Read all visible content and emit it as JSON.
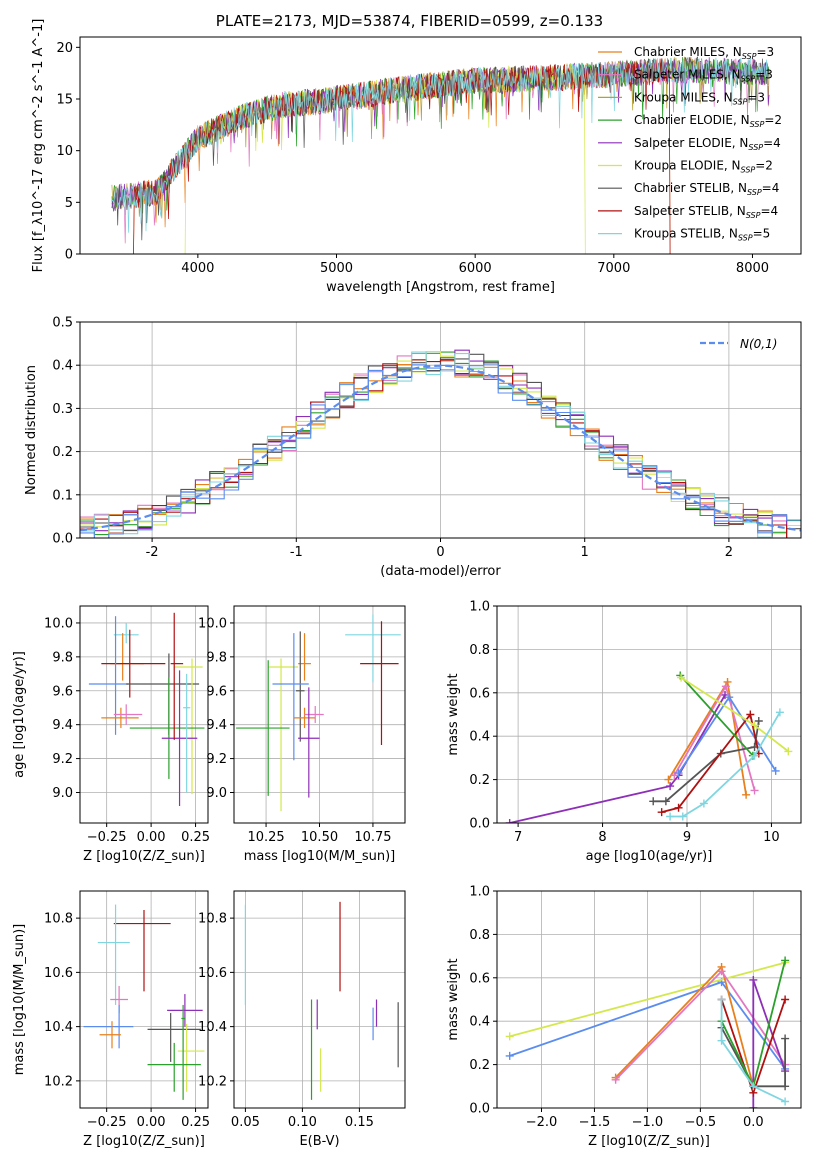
{
  "title": "PLATE=2173, MJD=53874, FIBERID=0599, z=0.133",
  "colors": [
    "#e377c2",
    "#e8801c",
    "#b5a130",
    "#2ca02c",
    "#8e2fb8",
    "#d4e84d",
    "#555555",
    "#b01010",
    "#7fd6e0",
    "#5b8def"
  ],
  "chart_data": [
    {
      "type": "line",
      "panel": "spectrum",
      "xlabel": "wavelength [Angstrom, rest frame]",
      "ylabel": "Flux [f_λ10^-17 erg cm^-2 s^-1 A^-1]",
      "xlim": [
        3150,
        8350
      ],
      "ylim": [
        0,
        21
      ],
      "xticks": [
        4000,
        5000,
        6000,
        7000,
        8000
      ],
      "yticks": [
        0,
        5,
        10,
        15,
        20
      ],
      "continuum_x": [
        3400,
        3700,
        4000,
        4300,
        4600,
        5000,
        5500,
        6000,
        6500,
        7000,
        7500,
        8100
      ],
      "continuum_y": [
        5.4,
        6.0,
        11.2,
        13.2,
        14.4,
        15.0,
        16.0,
        16.8,
        17.0,
        17.4,
        17.8,
        17.6
      ],
      "cutoffs": [
        {
          "series": "Chabrier MILES, N_SSP=3",
          "xmin": 3540,
          "xmax": 7400
        },
        {
          "series": "Kroupa ELODIE, N_SSP=2",
          "xmin": 3910,
          "xmax": 6790
        },
        {
          "series": "Salpeter STELIB, N_SSP=4",
          "xmin": 3540,
          "xmax": 7400
        }
      ],
      "legend": [
        {
          "label": "Chabrier MILES, N",
          "sub": "SSP",
          "tail": "=3"
        },
        {
          "label": "Salpeter MILES, N",
          "sub": "SSP",
          "tail": "=3"
        },
        {
          "label": "Kroupa MILES, N",
          "sub": "SSP",
          "tail": "=3"
        },
        {
          "label": "Chabrier ELODIE, N",
          "sub": "SSP",
          "tail": "=2"
        },
        {
          "label": "Salpeter ELODIE, N",
          "sub": "SSP",
          "tail": "=4"
        },
        {
          "label": "Kroupa ELODIE, N",
          "sub": "SSP",
          "tail": "=2"
        },
        {
          "label": "Chabrier STELIB, N",
          "sub": "SSP",
          "tail": "=4"
        },
        {
          "label": "Salpeter STELIB, N",
          "sub": "SSP",
          "tail": "=4"
        },
        {
          "label": "Kroupa STELIB, N",
          "sub": "SSP",
          "tail": "=5"
        }
      ],
      "legend_colors": [
        "#e8801c",
        "#e377c2",
        "#b5a130",
        "#2ca02c",
        "#8e2fb8",
        "#d4e84d",
        "#555555",
        "#b01010",
        "#7fd6e0"
      ],
      "legend_placement": "upper right"
    },
    {
      "type": "line",
      "panel": "residual-histogram",
      "xlabel": "(data-model)/error",
      "ylabel": "Normed distribution",
      "xlim": [
        -2.5,
        2.5
      ],
      "ylim": [
        0,
        0.5
      ],
      "xticks": [
        -2,
        -1,
        0,
        1,
        2
      ],
      "yticks": [
        0.0,
        0.1,
        0.2,
        0.3,
        0.4,
        0.5
      ],
      "grid": true,
      "bin_width": 0.1,
      "gaussian": {
        "label": "N(0,1)",
        "color": "#5b8def"
      },
      "legend_placement": "upper right"
    },
    {
      "type": "scatter",
      "panel": "age-vs-Z",
      "xlabel": "Z [log10(Z/Z_sun)]",
      "ylabel": "age [log10(age/yr)]",
      "xlim": [
        -0.4,
        0.32
      ],
      "ylim": [
        8.82,
        10.1
      ],
      "xticks": [
        -0.25,
        0.0,
        0.25
      ],
      "xticklabels": [
        "−0.25",
        "0.00",
        "0.25"
      ],
      "yticks": [
        9.0,
        9.2,
        9.4,
        9.6,
        9.8,
        10.0
      ],
      "grid": true,
      "points": [
        {
          "x": -0.14,
          "y": 9.93,
          "xerr": [
            0.07,
            0.07
          ],
          "yerr": [
            0.05,
            0.07
          ],
          "color": "#7fd6e0"
        },
        {
          "x": -0.16,
          "y": 9.76,
          "xerr": [
            0.07,
            0.12
          ],
          "yerr": [
            0.1,
            0.18
          ],
          "color": "#e8801c"
        },
        {
          "x": -0.12,
          "y": 9.76,
          "xerr": [
            0.16,
            0.2
          ],
          "yerr": [
            0.2,
            0.2
          ],
          "color": "#b01010"
        },
        {
          "x": -0.2,
          "y": 9.64,
          "xerr": [
            0.15,
            0.07
          ],
          "yerr": [
            0.3,
            0.4
          ],
          "color": "#5b8def"
        },
        {
          "x": 0.1,
          "y": 9.64,
          "xerr": [
            0.24,
            0.17
          ],
          "yerr": [
            0.3,
            0.18
          ],
          "color": "#555555"
        },
        {
          "x": 0.23,
          "y": 9.74,
          "xerr": [
            0.1,
            0.06
          ],
          "yerr": [
            0.75,
            0.05
          ],
          "color": "#d4e84d"
        },
        {
          "x": -0.17,
          "y": 9.44,
          "xerr": [
            0.11,
            0.1
          ],
          "yerr": [
            0.06,
            0.06
          ],
          "color": "#e8801c"
        },
        {
          "x": -0.14,
          "y": 9.46,
          "xerr": [
            0.07,
            0.09
          ],
          "yerr": [
            0.06,
            0.06
          ],
          "color": "#e377c2"
        },
        {
          "x": 0.1,
          "y": 9.38,
          "xerr": [
            0.22,
            0.2
          ],
          "yerr": [
            0.3,
            0.3
          ],
          "color": "#2ca02c"
        },
        {
          "x": 0.16,
          "y": 9.32,
          "xerr": [
            0.1,
            0.1
          ],
          "yerr": [
            0.4,
            0.4
          ],
          "color": "#8e2fb8"
        },
        {
          "x": 0.2,
          "y": 9.5,
          "xerr": [
            0.02,
            0.02
          ],
          "yerr": [
            0.5,
            0.2
          ],
          "color": "#7fd6e0"
        },
        {
          "x": 0.13,
          "y": 9.76,
          "xerr": [
            0.02,
            0.05
          ],
          "yerr": [
            0.45,
            0.3
          ],
          "color": "#b01010"
        }
      ]
    },
    {
      "type": "scatter",
      "panel": "age-vs-mass",
      "xlabel": "mass [log10(M/M_sun)]",
      "ylabel": "",
      "xlim": [
        10.1,
        10.9
      ],
      "ylim": [
        8.82,
        10.1
      ],
      "xticks": [
        10.25,
        10.5,
        10.75
      ],
      "xticklabels": [
        "10.25",
        "10.50",
        "10.75"
      ],
      "yticks": [
        9.0,
        9.2,
        9.4,
        9.6,
        9.8,
        10.0
      ],
      "grid": true,
      "points": [
        {
          "x": 10.43,
          "y": 9.76,
          "xerr": [
            0.03,
            0.03
          ],
          "yerr": [
            0.1,
            0.18
          ],
          "color": "#e8801c"
        },
        {
          "x": 10.41,
          "y": 9.6,
          "xerr": [
            0.02,
            0.02
          ],
          "yerr": [
            0.3,
            0.35
          ],
          "color": "#555555"
        },
        {
          "x": 10.75,
          "y": 9.93,
          "xerr": [
            0.13,
            0.13
          ],
          "yerr": [
            0.28,
            0.12
          ],
          "color": "#7fd6e0"
        },
        {
          "x": 10.79,
          "y": 9.76,
          "xerr": [
            0.1,
            0.08
          ],
          "yerr": [
            0.48,
            0.25
          ],
          "color": "#b01010"
        },
        {
          "x": 10.32,
          "y": 9.74,
          "xerr": [
            0.06,
            0.08
          ],
          "yerr": [
            0.85,
            0.05
          ],
          "color": "#d4e84d"
        },
        {
          "x": 10.38,
          "y": 9.64,
          "xerr": [
            0.1,
            0.07
          ],
          "yerr": [
            0.45,
            0.3
          ],
          "color": "#5b8def"
        },
        {
          "x": 10.43,
          "y": 9.44,
          "xerr": [
            0.05,
            0.05
          ],
          "yerr": [
            0.06,
            0.06
          ],
          "color": "#e8801c"
        },
        {
          "x": 10.48,
          "y": 9.46,
          "xerr": [
            0.05,
            0.04
          ],
          "yerr": [
            0.05,
            0.05
          ],
          "color": "#e377c2"
        },
        {
          "x": 10.26,
          "y": 9.38,
          "xerr": [
            0.15,
            0.1
          ],
          "yerr": [
            0.4,
            0.4
          ],
          "color": "#2ca02c"
        },
        {
          "x": 10.45,
          "y": 9.32,
          "xerr": [
            0.05,
            0.05
          ],
          "yerr": [
            0.35,
            0.3
          ],
          "color": "#8e2fb8"
        }
      ]
    },
    {
      "type": "line",
      "panel": "mass-weight-vs-age",
      "xlabel": "age [log10(age/yr)]",
      "ylabel": "mass weight",
      "xlim": [
        6.75,
        10.35
      ],
      "ylim": [
        0,
        1
      ],
      "xticks": [
        7,
        8,
        9,
        10
      ],
      "yticks": [
        0.0,
        0.2,
        0.4,
        0.6,
        0.8,
        1.0
      ],
      "grid": true,
      "series": [
        {
          "color": "#8e2fb8",
          "x": [
            6.9,
            8.8,
            8.9,
            9.45
          ],
          "y": [
            0.0,
            0.17,
            0.22,
            0.59
          ]
        },
        {
          "color": "#e8801c",
          "x": [
            8.78,
            9.48,
            9.7
          ],
          "y": [
            0.2,
            0.65,
            0.13
          ]
        },
        {
          "color": "#e377c2",
          "x": [
            8.85,
            9.46,
            9.8
          ],
          "y": [
            0.22,
            0.63,
            0.15
          ]
        },
        {
          "color": "#5b8def",
          "x": [
            8.9,
            9.5,
            10.05
          ],
          "y": [
            0.23,
            0.58,
            0.24
          ]
        },
        {
          "color": "#555555",
          "x": [
            8.6,
            8.75,
            9.4,
            9.8,
            9.85
          ],
          "y": [
            0.1,
            0.1,
            0.32,
            0.35,
            0.47
          ]
        },
        {
          "color": "#b01010",
          "x": [
            8.7,
            8.9,
            9.75,
            9.85
          ],
          "y": [
            0.05,
            0.07,
            0.5,
            0.32
          ]
        },
        {
          "color": "#2ca02c",
          "x": [
            8.92,
            9.78
          ],
          "y": [
            0.68,
            0.31
          ]
        },
        {
          "color": "#d4e84d",
          "x": [
            8.93,
            9.8,
            10.2
          ],
          "y": [
            0.67,
            0.45,
            0.33
          ]
        },
        {
          "color": "#7fd6e0",
          "x": [
            8.8,
            8.95,
            9.2,
            9.8,
            10.1
          ],
          "y": [
            0.03,
            0.03,
            0.09,
            0.31,
            0.51
          ]
        }
      ]
    },
    {
      "type": "scatter",
      "panel": "mass-vs-Z",
      "xlabel": "Z [log10(Z/Z_sun)]",
      "ylabel": "mass [log10(M/M_sun)]",
      "xlim": [
        -0.4,
        0.32
      ],
      "ylim": [
        10.1,
        10.9
      ],
      "xticks": [
        -0.25,
        0.0,
        0.25
      ],
      "xticklabels": [
        "−0.25",
        "0.00",
        "0.25"
      ],
      "yticks": [
        10.2,
        10.4,
        10.6,
        10.8
      ],
      "grid": true,
      "points": [
        {
          "x": -0.04,
          "y": 10.78,
          "xerr": [
            0.17,
            0.15
          ],
          "yerr": [
            0.25,
            0.05
          ],
          "color": "#b01010"
        },
        {
          "x": -0.2,
          "y": 10.71,
          "xerr": [
            0.1,
            0.08
          ],
          "yerr": [
            0.23,
            0.14
          ],
          "color": "#7fd6e0"
        },
        {
          "x": -0.18,
          "y": 10.5,
          "xerr": [
            0.05,
            0.05
          ],
          "yerr": [
            0.05,
            0.05
          ],
          "color": "#e377c2"
        },
        {
          "x": 0.19,
          "y": 10.46,
          "xerr": [
            0.1,
            0.1
          ],
          "yerr": [
            0.06,
            0.06
          ],
          "color": "#8e2fb8"
        },
        {
          "x": -0.18,
          "y": 10.4,
          "xerr": [
            0.2,
            0.08
          ],
          "yerr": [
            0.08,
            0.08
          ],
          "color": "#5b8def"
        },
        {
          "x": 0.11,
          "y": 10.39,
          "xerr": [
            0.13,
            0.17
          ],
          "yerr": [
            0.12,
            0.06
          ],
          "color": "#555555"
        },
        {
          "x": -0.22,
          "y": 10.37,
          "xerr": [
            0.07,
            0.05
          ],
          "yerr": [
            0.05,
            0.05
          ],
          "color": "#e8801c"
        },
        {
          "x": 0.2,
          "y": 10.31,
          "xerr": [
            0.05,
            0.1
          ],
          "yerr": [
            0.15,
            0.1
          ],
          "color": "#d4e84d"
        },
        {
          "x": 0.13,
          "y": 10.26,
          "xerr": [
            0.15,
            0.15
          ],
          "yerr": [
            0.1,
            0.08
          ],
          "color": "#2ca02c"
        },
        {
          "x": 0.18,
          "y": 10.43,
          "xerr": [
            0.01,
            0.01
          ],
          "yerr": [
            0.3,
            0.05
          ],
          "color": "#2ca02c"
        }
      ]
    },
    {
      "type": "scatter",
      "panel": "mass-vs-ebv",
      "xlabel": "E(B-V)",
      "ylabel": "",
      "xlim": [
        0.04,
        0.19
      ],
      "ylim": [
        10.1,
        10.9
      ],
      "xticks": [
        0.05,
        0.1,
        0.15
      ],
      "xticklabels": [
        "0.05",
        "0.10",
        "0.15"
      ],
      "yticks": [
        10.2,
        10.4,
        10.6,
        10.8
      ],
      "grid": true,
      "points": [
        {
          "x": 0.05,
          "y": 10.71,
          "yerr": [
            0.23,
            0.14
          ],
          "color": "#7fd6e0"
        },
        {
          "x": 0.133,
          "y": 10.78,
          "yerr": [
            0.25,
            0.08
          ],
          "color": "#b01010"
        },
        {
          "x": 0.108,
          "y": 10.4,
          "yerr": [
            0.27,
            0.1
          ],
          "color": "#2ca02c"
        },
        {
          "x": 0.113,
          "y": 10.46,
          "yerr": [
            0.07,
            0.04
          ],
          "color": "#8e2fb8"
        },
        {
          "x": 0.116,
          "y": 10.26,
          "yerr": [
            0.1,
            0.06
          ],
          "color": "#d4e84d"
        },
        {
          "x": 0.162,
          "y": 10.42,
          "yerr": [
            0.07,
            0.05
          ],
          "color": "#5b8def"
        },
        {
          "x": 0.165,
          "y": 10.46,
          "yerr": [
            0.06,
            0.04
          ],
          "color": "#8e2fb8"
        },
        {
          "x": 0.184,
          "y": 10.39,
          "yerr": [
            0.14,
            0.1
          ],
          "color": "#555555"
        }
      ]
    },
    {
      "type": "line",
      "panel": "mass-weight-vs-Z",
      "xlabel": "Z [log10(Z/Z_sun)]",
      "ylabel": "mass weight",
      "xlim": [
        -2.42,
        0.45
      ],
      "ylim": [
        0,
        1
      ],
      "xticks": [
        -2.0,
        -1.5,
        -1.0,
        -0.5,
        0.0
      ],
      "xticklabels": [
        "−2.0",
        "−1.5",
        "−1.0",
        "−0.5",
        "0.0"
      ],
      "yticks": [
        0.0,
        0.2,
        0.4,
        0.6,
        0.8,
        1.0
      ],
      "grid": true,
      "series": [
        {
          "color": "#5b8def",
          "x": [
            -2.3,
            -0.3,
            0.3
          ],
          "y": [
            0.24,
            0.58,
            0.18
          ]
        },
        {
          "color": "#d4e84d",
          "x": [
            -2.3,
            0.3
          ],
          "y": [
            0.33,
            0.67
          ]
        },
        {
          "color": "#e8801c",
          "x": [
            -1.3,
            -0.3,
            0.0
          ],
          "y": [
            0.14,
            0.65,
            0.1
          ]
        },
        {
          "color": "#e377c2",
          "x": [
            -1.3,
            -0.3,
            0.3
          ],
          "y": [
            0.13,
            0.63,
            0.2
          ]
        },
        {
          "color": "#8e2fb8",
          "x": [
            0.0,
            0.0,
            0.3
          ],
          "y": [
            0.0,
            0.59,
            0.17
          ]
        },
        {
          "color": "#b01010",
          "x": [
            -0.3,
            0.0,
            0.3
          ],
          "y": [
            0.5,
            0.07,
            0.5
          ]
        },
        {
          "color": "#555555",
          "x": [
            -0.3,
            0.0,
            0.3,
            0.3
          ],
          "y": [
            0.37,
            0.1,
            0.1,
            0.32
          ]
        },
        {
          "color": "#2ca02c",
          "x": [
            -0.3,
            0.0,
            0.3
          ],
          "y": [
            0.4,
            0.1,
            0.68
          ]
        },
        {
          "color": "#7fd6e0",
          "x": [
            -0.3,
            -0.3,
            0.0,
            0.3
          ],
          "y": [
            0.5,
            0.31,
            0.1,
            0.03
          ]
        }
      ]
    }
  ]
}
